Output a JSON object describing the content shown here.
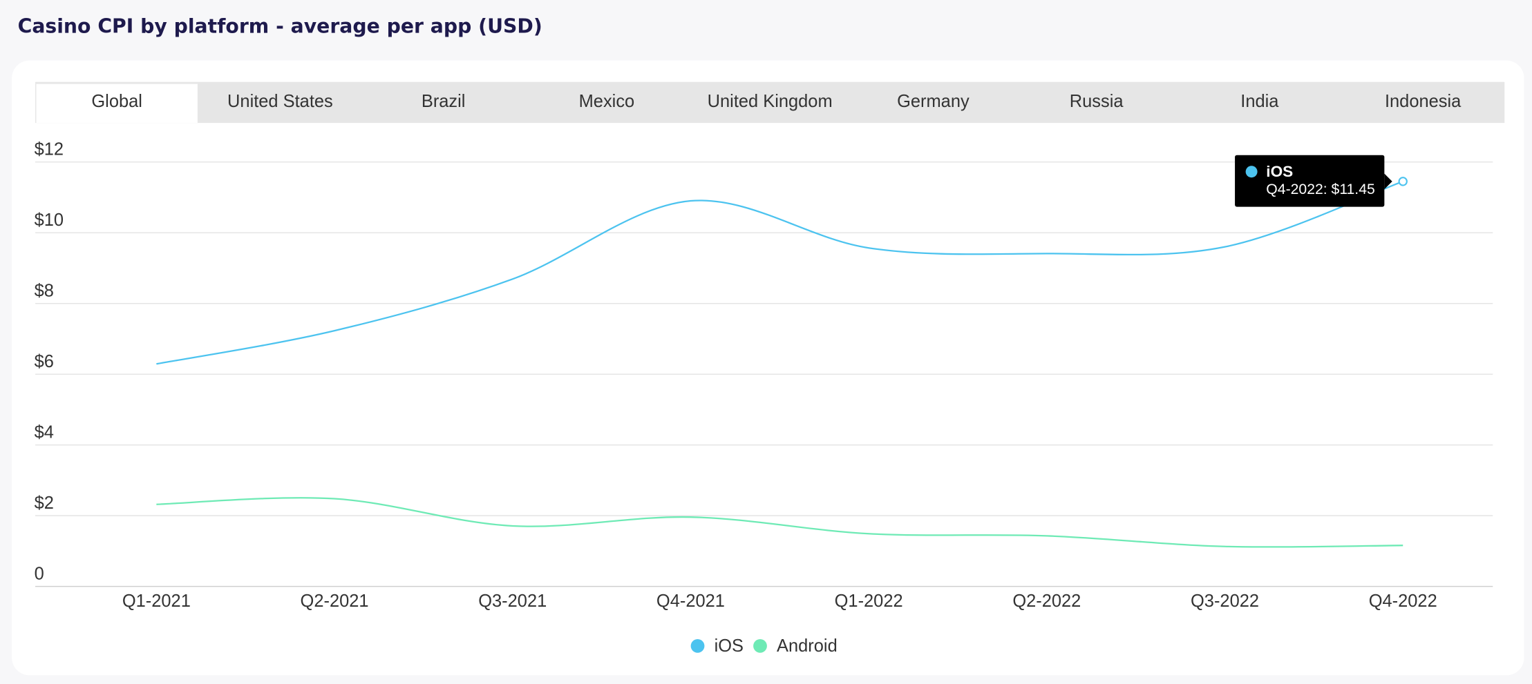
{
  "chart_data": {
    "type": "line",
    "title": "Casino CPI by platform - average per app (USD)",
    "tabs": [
      "Global",
      "United States",
      "Brazil",
      "Mexico",
      "United Kingdom",
      "Germany",
      "Russia",
      "India",
      "Indonesia"
    ],
    "categories": [
      "Q1-2021",
      "Q2-2021",
      "Q3-2021",
      "Q4-2021",
      "Q1-2022",
      "Q2-2022",
      "Q3-2022",
      "Q4-2022"
    ],
    "series": [
      {
        "name": "iOS",
        "color": "#4cc3ef",
        "values": [
          6.29,
          7.23,
          8.69,
          10.9,
          9.57,
          9.41,
          9.6,
          11.45
        ]
      },
      {
        "name": "Android",
        "color": "#6eeab5",
        "values": [
          2.32,
          2.48,
          1.71,
          1.96,
          1.49,
          1.43,
          1.13,
          1.16
        ]
      }
    ],
    "ylim": [
      0,
      12
    ],
    "yticks": [
      0,
      {
        "value": 2,
        "label": "$2"
      },
      {
        "value": 4,
        "label": "$4"
      },
      {
        "value": 6,
        "label": "$6"
      },
      {
        "value": 8,
        "label": "$8"
      },
      {
        "value": 10,
        "label": "$10"
      },
      {
        "value": 12,
        "label": "$12"
      }
    ],
    "grid": true,
    "legend": "bottom",
    "tooltip": {
      "title": "iOS",
      "text": "Q4-2022: $11.45"
    }
  }
}
